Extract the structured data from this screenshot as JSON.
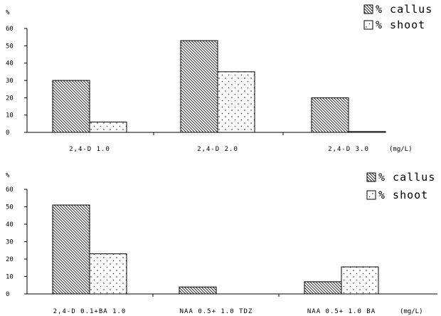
{
  "chart_data": [
    {
      "type": "bar",
      "title": "",
      "ylabel": "%",
      "xlabel": "(mg/L)",
      "ylim": [
        0,
        60
      ],
      "yticks": [
        0,
        10,
        20,
        30,
        40,
        50,
        60
      ],
      "categories": [
        "2,4-D 1.0",
        "2,4-D 2.0",
        "2,4-D 3.0"
      ],
      "series": [
        {
          "name": "% callus",
          "values": [
            30,
            53,
            20
          ],
          "pattern": "diagonal-hatch"
        },
        {
          "name": "% shoot",
          "values": [
            6,
            35,
            0.5
          ],
          "pattern": "dots"
        }
      ],
      "legend": "top-right"
    },
    {
      "type": "bar",
      "title": "",
      "ylabel": "%",
      "xlabel": "(mg/L)",
      "ylim": [
        0,
        60
      ],
      "yticks": [
        0,
        10,
        20,
        30,
        40,
        50,
        60
      ],
      "categories": [
        "2,4-D 0.1+BA 1.0",
        "NAA 0.5+ 1.0 TDZ",
        "NAA 0.5+ 1.0 BA"
      ],
      "series": [
        {
          "name": "% callus",
          "values": [
            51,
            4,
            7
          ],
          "pattern": "diagonal-hatch"
        },
        {
          "name": "% shoot",
          "values": [
            23,
            0,
            15.5
          ],
          "pattern": "dots"
        }
      ],
      "legend": "top-right"
    }
  ]
}
